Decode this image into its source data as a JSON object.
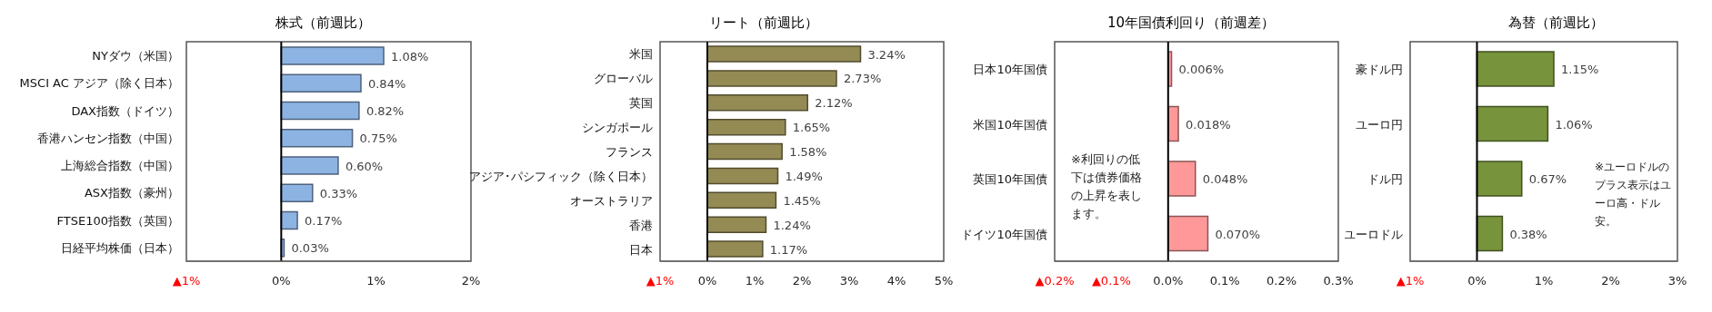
{
  "chart_data": [
    {
      "type": "bar",
      "orientation": "horizontal",
      "title": "株式（前週比）",
      "categories": [
        "NYダウ（米国）",
        "MSCI AC アジア（除く日本）",
        "DAX指数（ドイツ）",
        "香港ハンセン指数（中国）",
        "上海総合指数（中国）",
        "ASX指数（豪州）",
        "FTSE100指数（英国）",
        "日経平均株価（日本）"
      ],
      "values": [
        1.08,
        0.84,
        0.82,
        0.75,
        0.6,
        0.33,
        0.17,
        0.03
      ],
      "value_labels": [
        "1.08%",
        "0.84%",
        "0.82%",
        "0.75%",
        "0.60%",
        "0.33%",
        "0.17%",
        "0.03%"
      ],
      "color": "#8db3e2",
      "xlim": [
        -1,
        2
      ],
      "xticks": [
        {
          "value": -1,
          "label": "▲1%"
        },
        {
          "value": 0,
          "label": "0%"
        },
        {
          "value": 1,
          "label": "1%"
        },
        {
          "value": 2,
          "label": "2%"
        }
      ]
    },
    {
      "type": "bar",
      "orientation": "horizontal",
      "title": "リート（前週比）",
      "categories": [
        "米国",
        "グローバル",
        "英国",
        "シンガポール",
        "フランス",
        "アジア･パシフィック（除く日本）",
        "オーストラリア",
        "香港",
        "日本"
      ],
      "values": [
        3.24,
        2.73,
        2.12,
        1.65,
        1.58,
        1.49,
        1.45,
        1.24,
        1.17
      ],
      "value_labels": [
        "3.24%",
        "2.73%",
        "2.12%",
        "1.65%",
        "1.58%",
        "1.49%",
        "1.45%",
        "1.24%",
        "1.17%"
      ],
      "color": "#948a54",
      "xlim": [
        -1,
        5
      ],
      "xticks": [
        {
          "value": -1,
          "label": "▲1%"
        },
        {
          "value": 0,
          "label": "0%"
        },
        {
          "value": 1,
          "label": "1%"
        },
        {
          "value": 2,
          "label": "2%"
        },
        {
          "value": 3,
          "label": "3%"
        },
        {
          "value": 4,
          "label": "4%"
        },
        {
          "value": 5,
          "label": "5%"
        }
      ]
    },
    {
      "type": "bar",
      "orientation": "horizontal",
      "title": "10年国債利回り（前週差）",
      "categories": [
        "日本10年国債",
        "米国10年国債",
        "英国10年国債",
        "ドイツ10年国債"
      ],
      "values": [
        0.006,
        0.018,
        0.048,
        0.07
      ],
      "value_labels": [
        "0.006%",
        "0.018%",
        "0.048%",
        "0.070%"
      ],
      "color": "#ff9999",
      "xlim": [
        -0.2,
        0.3
      ],
      "xticks": [
        {
          "value": -0.2,
          "label": "▲0.2%"
        },
        {
          "value": -0.1,
          "label": "▲0.1%"
        },
        {
          "value": 0,
          "label": "0.0%"
        },
        {
          "value": 0.1,
          "label": "0.1%"
        },
        {
          "value": 0.2,
          "label": "0.2%"
        },
        {
          "value": 0.3,
          "label": "0.3%"
        }
      ],
      "annotations": [
        "※利回りの低下は債券価格の上昇を表します。"
      ]
    },
    {
      "type": "bar",
      "orientation": "horizontal",
      "title": "為替（前週比）",
      "categories": [
        "豪ドル円",
        "ユーロ円",
        "ドル円",
        "ユーロドル"
      ],
      "values": [
        1.15,
        1.06,
        0.67,
        0.38
      ],
      "value_labels": [
        "1.15%",
        "1.06%",
        "0.67%",
        "0.38%"
      ],
      "color": "#77933c",
      "xlim": [
        -1,
        3
      ],
      "xticks": [
        {
          "value": -1,
          "label": "▲1%"
        },
        {
          "value": 0,
          "label": "0%"
        },
        {
          "value": 1,
          "label": "1%"
        },
        {
          "value": 2,
          "label": "2%"
        },
        {
          "value": 3,
          "label": "3%"
        }
      ],
      "annotations": [
        "※ユーロドルのプラス表示はユーロ高・ドル安。"
      ]
    }
  ]
}
